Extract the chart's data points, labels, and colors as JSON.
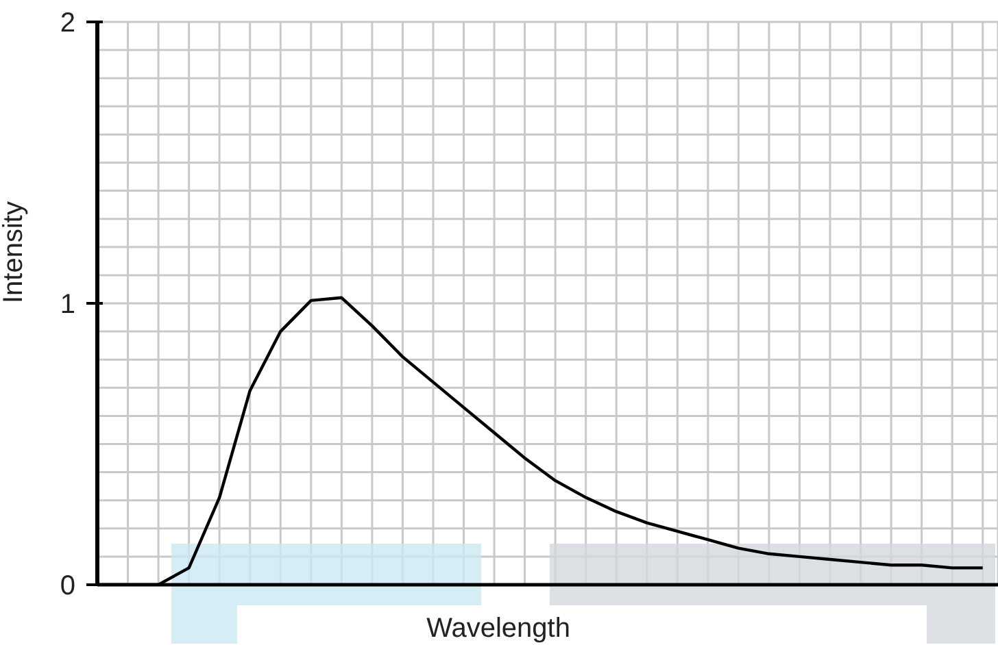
{
  "chart_data": {
    "type": "line",
    "xlabel": "Wavelength",
    "ylabel": "Intensity",
    "categories": [
      null,
      null,
      null,
      null,
      null,
      null,
      null,
      null,
      null,
      null,
      null,
      null,
      null,
      null,
      null,
      null,
      null,
      null,
      null,
      null,
      null,
      null,
      null,
      null,
      null,
      null,
      null,
      null,
      null,
      null
    ],
    "values": [
      0,
      0,
      0,
      0.06,
      0.31,
      0.69,
      0.9,
      1.01,
      1.02,
      0.92,
      0.81,
      0.72,
      0.63,
      0.54,
      0.45,
      0.37,
      0.31,
      0.26,
      0.22,
      0.19,
      0.16,
      0.13,
      0.11,
      0.1,
      0.09,
      0.08,
      0.07,
      0.07,
      0.06,
      0.06
    ],
    "color": "#000000",
    "ylim": [
      0,
      2
    ],
    "yticks": [
      0,
      {
        "value": 0.1,
        "label": null
      },
      {
        "value": 0.2,
        "label": null
      },
      {
        "value": 0.3,
        "label": null
      },
      {
        "value": 0.4,
        "label": null
      },
      {
        "value": 0.5,
        "label": null
      },
      {
        "value": 0.6,
        "label": null
      },
      {
        "value": 0.7,
        "label": null
      },
      {
        "value": 0.8,
        "label": null
      },
      {
        "value": 0.9,
        "label": null
      },
      1,
      {
        "value": 1.1,
        "label": null
      },
      {
        "value": 1.2,
        "label": null
      },
      {
        "value": 1.3,
        "label": null
      },
      {
        "value": 1.4,
        "label": null
      },
      {
        "value": 1.5,
        "label": null
      },
      {
        "value": 1.6,
        "label": null
      },
      {
        "value": 1.7,
        "label": null
      },
      {
        "value": 1.8,
        "label": null
      },
      {
        "value": 1.9,
        "label": null
      },
      2
    ],
    "grid": true
  }
}
